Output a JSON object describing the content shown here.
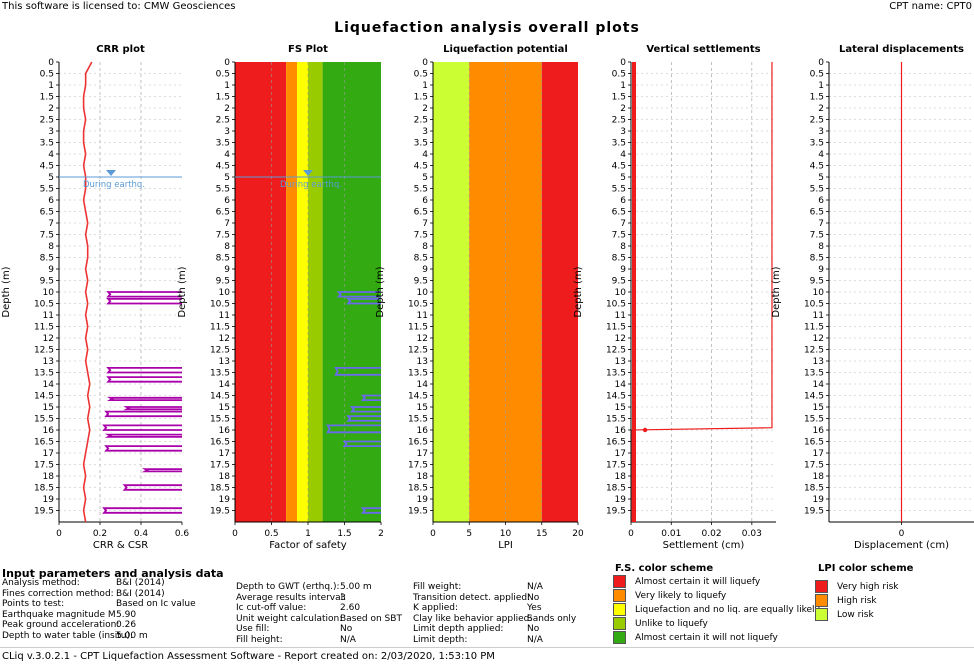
{
  "header": {
    "license": "This software is licensed to: CMW Geosciences",
    "cpt_name": "CPT name: CPT0"
  },
  "title": "Liquefaction analysis overall plots",
  "gwt_label": "During earthq.",
  "colors": {
    "red": "#ee1c1c",
    "orange": "#ff8c00",
    "yellow": "#ffff00",
    "lightgreen": "#99cc00",
    "green": "#33aa11",
    "lime": "#ccff33",
    "csr": "#aa00aa",
    "crr": "#ee3333",
    "water": "#5b9bd5",
    "fsline": "#6a6aee"
  },
  "chart_data": [
    {
      "type": "line",
      "title": "CRR plot",
      "xlabel": "CRR & CSR",
      "ylabel": "Depth (m)",
      "xlim": [
        0,
        0.6
      ],
      "ylim": [
        20,
        0
      ],
      "xticks": [
        "0",
        "0.2",
        "0.4",
        "0.6"
      ],
      "series": [
        {
          "name": "CRR",
          "x": [
            0.16,
            0.13,
            0.13,
            0.12,
            0.12,
            0.13,
            0.12,
            0.12,
            0.13,
            0.12,
            0.13,
            0.13,
            0.12,
            0.13,
            0.14,
            0.13,
            0.14,
            0.14,
            0.13,
            0.14,
            0.13,
            0.14,
            0.13,
            0.14,
            0.13,
            0.14,
            0.13,
            0.14,
            0.15,
            0.14,
            0.15,
            0.14,
            0.15,
            0.14,
            0.13,
            0.12,
            0.13,
            0.12,
            0.13,
            0.12,
            0.13
          ],
          "y": [
            0,
            0.5,
            1,
            1.5,
            2,
            2.5,
            3,
            3.5,
            4,
            4.5,
            5,
            5.5,
            6,
            6.5,
            7,
            7.5,
            8,
            8.5,
            9,
            9.5,
            10,
            10.5,
            11,
            11.5,
            12,
            12.5,
            13,
            13.5,
            14,
            14.5,
            15,
            15.5,
            16,
            16.5,
            17,
            17.5,
            18,
            18.5,
            19,
            19.5,
            20
          ]
        },
        {
          "name": "CSR",
          "segments": [
            {
              "depth": [
                10.0,
                10.2
              ],
              "x": [
                0.24,
                0.6
              ]
            },
            {
              "depth": [
                10.3,
                10.5
              ],
              "x": [
                0.24,
                0.6
              ]
            },
            {
              "depth": [
                13.3,
                13.5
              ],
              "x": [
                0.24,
                0.6
              ]
            },
            {
              "depth": [
                13.7,
                13.9
              ],
              "x": [
                0.24,
                0.6
              ]
            },
            {
              "depth": [
                14.6,
                14.7
              ],
              "x": [
                0.25,
                0.6
              ]
            },
            {
              "depth": [
                15.0,
                15.1
              ],
              "x": [
                0.33,
                0.6
              ]
            },
            {
              "depth": [
                15.2,
                15.4
              ],
              "x": [
                0.23,
                0.6
              ]
            },
            {
              "depth": [
                15.8,
                16.0
              ],
              "x": [
                0.22,
                0.6
              ]
            },
            {
              "depth": [
                16.2,
                16.3
              ],
              "x": [
                0.24,
                0.6
              ]
            },
            {
              "depth": [
                16.7,
                16.9
              ],
              "x": [
                0.23,
                0.6
              ]
            },
            {
              "depth": [
                17.7,
                17.8
              ],
              "x": [
                0.42,
                0.6
              ]
            },
            {
              "depth": [
                18.4,
                18.6
              ],
              "x": [
                0.32,
                0.6
              ]
            },
            {
              "depth": [
                19.4,
                19.6
              ],
              "x": [
                0.22,
                0.6
              ]
            }
          ]
        }
      ]
    },
    {
      "type": "line",
      "title": "FS Plot",
      "xlabel": "Factor of safety",
      "ylabel": "Depth (m)",
      "xlim": [
        0,
        2
      ],
      "ylim": [
        20,
        0
      ],
      "xticks": [
        "0",
        "0.5",
        "1",
        "1.5",
        "2"
      ],
      "bands": [
        {
          "from": 0,
          "to": 0.7,
          "color": "red"
        },
        {
          "from": 0.7,
          "to": 0.85,
          "color": "orange"
        },
        {
          "from": 0.85,
          "to": 1.0,
          "color": "yellow"
        },
        {
          "from": 1.0,
          "to": 1.2,
          "color": "lightgreen"
        },
        {
          "from": 1.2,
          "to": 2.0,
          "color": "green"
        }
      ],
      "series": [
        {
          "name": "FS",
          "segments": [
            {
              "depth": [
                10.0,
                10.2
              ],
              "x": [
                1.42,
                2
              ]
            },
            {
              "depth": [
                10.3,
                10.5
              ],
              "x": [
                1.55,
                2
              ]
            },
            {
              "depth": [
                13.3,
                13.6
              ],
              "x": [
                1.38,
                2
              ]
            },
            {
              "depth": [
                14.5,
                14.7
              ],
              "x": [
                1.75,
                2
              ]
            },
            {
              "depth": [
                15.0,
                15.2
              ],
              "x": [
                1.6,
                2
              ]
            },
            {
              "depth": [
                15.4,
                15.6
              ],
              "x": [
                1.55,
                2
              ]
            },
            {
              "depth": [
                15.8,
                16.1
              ],
              "x": [
                1.27,
                2
              ]
            },
            {
              "depth": [
                16.5,
                16.7
              ],
              "x": [
                1.5,
                2
              ]
            },
            {
              "depth": [
                19.4,
                19.6
              ],
              "x": [
                1.75,
                2
              ]
            }
          ]
        }
      ]
    },
    {
      "type": "area",
      "title": "Liquefaction potential",
      "xlabel": "LPI",
      "ylabel": "Depth (m)",
      "xlim": [
        0,
        20
      ],
      "ylim": [
        20,
        0
      ],
      "xticks": [
        "0",
        "5",
        "10",
        "15",
        "20"
      ],
      "bands": [
        {
          "from": 0,
          "to": 5,
          "color": "lime"
        },
        {
          "from": 5,
          "to": 15,
          "color": "orange"
        },
        {
          "from": 15,
          "to": 20,
          "color": "red"
        }
      ]
    },
    {
      "type": "line",
      "title": "Vertical settlements",
      "xlabel": "Settlement (cm)",
      "ylabel": "Depth (m)",
      "xlim": [
        0,
        0.036
      ],
      "ylim": [
        20,
        0
      ],
      "xticks": [
        "0",
        "0.01",
        "0.02",
        "0.03"
      ],
      "series": [
        {
          "name": "Settlement",
          "x": [
            0.035,
            0.035,
            0.0003,
            0.0003
          ],
          "y": [
            0,
            15.9,
            16.0,
            20
          ]
        }
      ]
    },
    {
      "type": "line",
      "title": "Lateral displacements",
      "xlabel": "Displacement (cm)",
      "ylabel": "Depth (m)",
      "xlim": [
        -1,
        1
      ],
      "ylim": [
        20,
        0
      ],
      "xticks": [
        "0"
      ],
      "series": [
        {
          "name": "Displacement",
          "x": [
            0,
            0
          ],
          "y": [
            0,
            20
          ]
        }
      ]
    }
  ],
  "depth_ticks": [
    "0",
    "0.5",
    "1",
    "1.5",
    "2",
    "2.5",
    "3",
    "3.5",
    "4",
    "4.5",
    "5",
    "5.5",
    "6",
    "6.5",
    "7",
    "7.5",
    "8",
    "8.5",
    "9",
    "9.5",
    "10",
    "10.5",
    "11",
    "11.5",
    "12",
    "12.5",
    "13",
    "13.5",
    "14",
    "14.5",
    "15",
    "15.5",
    "16",
    "16.5",
    "17",
    "17.5",
    "18",
    "18.5",
    "19",
    "19.5"
  ],
  "params_title": "Input parameters and analysis data",
  "params": {
    "col1": [
      {
        "label": "Analysis method:",
        "value": "B&I (2014)"
      },
      {
        "label": "Fines correction method:",
        "value": "B&I (2014)"
      },
      {
        "label": "Points to test:",
        "value": "Based on Ic value"
      },
      {
        "label": "Earthquake magnitude M",
        "value": "5.90"
      },
      {
        "label": "Peak ground acceleration:",
        "value": "0.26"
      },
      {
        "label": "Depth to water table (insitu):",
        "value": "5.00 m"
      }
    ],
    "col2": [
      {
        "label": "Depth to GWT (erthq.):",
        "value": "5.00 m"
      },
      {
        "label": "Average results interval:",
        "value": "3"
      },
      {
        "label": "Ic cut-off value:",
        "value": "2.60"
      },
      {
        "label": "Unit weight calculation:",
        "value": "Based on SBT"
      },
      {
        "label": "Use fill:",
        "value": "No"
      },
      {
        "label": "Fill height:",
        "value": "N/A"
      }
    ],
    "col3": [
      {
        "label": "Fill weight:",
        "value": "N/A"
      },
      {
        "label": "Transition detect. applied:",
        "value": "No"
      },
      {
        "label": "K applied:",
        "value": "Yes"
      },
      {
        "label": "Clay like behavior applied:",
        "value": "Sands only"
      },
      {
        "label": "Limit depth applied:",
        "value": "No"
      },
      {
        "label": "Limit depth:",
        "value": "N/A"
      }
    ]
  },
  "fs_scheme": {
    "title": "F.S. color scheme",
    "items": [
      {
        "label": "Almost certain it will liquefy",
        "color": "#ee1c1c"
      },
      {
        "label": "Very likely to liquefy",
        "color": "#ff8c00"
      },
      {
        "label": "Liquefaction and no liq. are equally likely",
        "color": "#ffff00"
      },
      {
        "label": "Unlike to liquefy",
        "color": "#99cc00"
      },
      {
        "label": "Almost certain it will not liquefy",
        "color": "#33aa11"
      }
    ]
  },
  "lpi_scheme": {
    "title": "LPI color scheme",
    "items": [
      {
        "label": "Very high risk",
        "color": "#ee1c1c"
      },
      {
        "label": "High risk",
        "color": "#ff8c00"
      },
      {
        "label": "Low risk",
        "color": "#ccff33"
      }
    ]
  },
  "footer": "CLiq v.3.0.2.1 - CPT Liquefaction Assessment Software - Report created on: 2/03/2020, 1:53:10 PM"
}
